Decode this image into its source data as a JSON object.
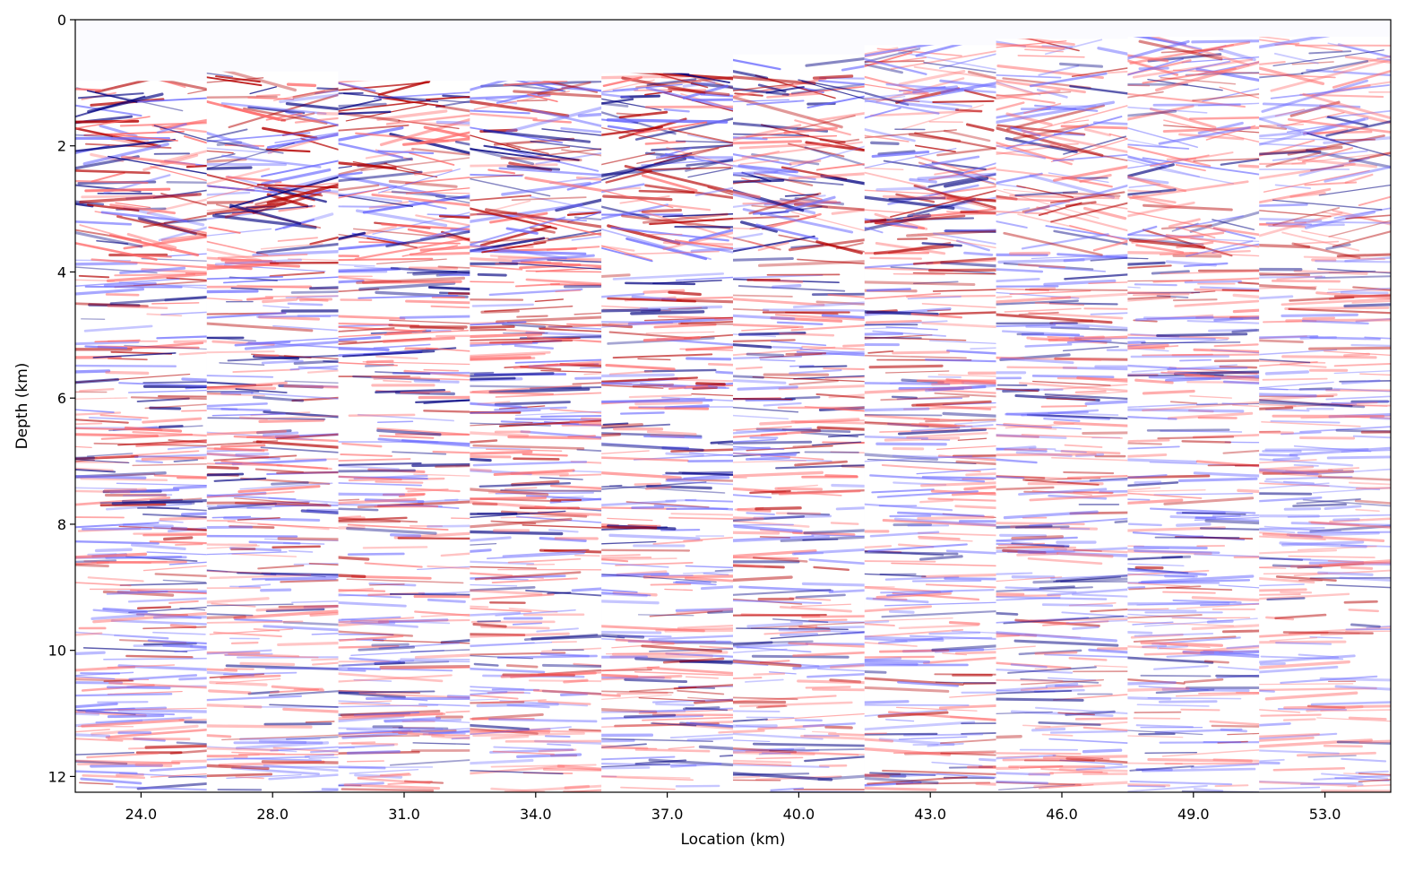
{
  "chart_data": {
    "type": "heatmap",
    "title": "",
    "xlabel": "Location (km)",
    "ylabel": "Depth (km)",
    "ylim": [
      12.25,
      0
    ],
    "y_ticks": [
      0,
      2,
      4,
      6,
      8,
      10,
      12
    ],
    "y_tick_labels": [
      "0",
      "2",
      "4",
      "6",
      "8",
      "10",
      "12"
    ],
    "x_tick_labels": [
      "24.0",
      "28.0",
      "31.0",
      "34.0",
      "37.0",
      "40.0",
      "43.0",
      "46.0",
      "49.0",
      "53.0"
    ],
    "colormap": [
      "#0000ff",
      "#ffffff",
      "#ff0000"
    ],
    "grid": false,
    "legend": "none",
    "panels": [
      {
        "label": "24.0",
        "top_depth": 0.97,
        "energy_top": 1.0,
        "energy_base": 0.45
      },
      {
        "label": "28.0",
        "top_depth": 0.82,
        "energy_top": 1.0,
        "energy_base": 0.35
      },
      {
        "label": "31.0",
        "top_depth": 0.97,
        "energy_top": 1.0,
        "energy_base": 0.4
      },
      {
        "label": "34.0",
        "top_depth": 0.97,
        "energy_top": 1.0,
        "energy_base": 0.4
      },
      {
        "label": "37.0",
        "top_depth": 0.85,
        "energy_top": 1.0,
        "energy_base": 0.4
      },
      {
        "label": "40.0",
        "top_depth": 0.55,
        "energy_top": 0.85,
        "energy_base": 0.4
      },
      {
        "label": "43.0",
        "top_depth": 0.4,
        "energy_top": 0.75,
        "energy_base": 0.45
      },
      {
        "label": "46.0",
        "top_depth": 0.3,
        "energy_top": 0.6,
        "energy_base": 0.4
      },
      {
        "label": "49.0",
        "top_depth": 0.27,
        "energy_top": 0.6,
        "energy_base": 0.4
      },
      {
        "label": "53.0",
        "top_depth": 0.27,
        "energy_top": 0.45,
        "energy_base": 0.25
      }
    ]
  }
}
